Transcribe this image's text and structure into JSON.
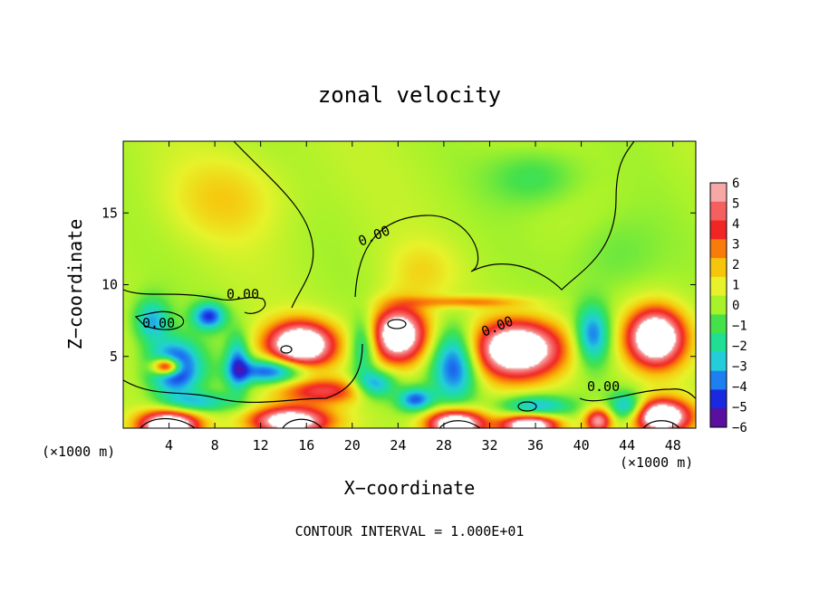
{
  "chart_data": {
    "type": "heatmap",
    "title": "zonal velocity",
    "xlabel": "X−coordinate",
    "ylabel": "Z−coordinate",
    "x_unit_left": "(×1000 m)",
    "x_unit_right": "(×1000 m)",
    "xlim": [
      0,
      50
    ],
    "ylim": [
      0,
      20
    ],
    "x_ticks": [
      "4",
      "8",
      "12",
      "16",
      "20",
      "24",
      "28",
      "32",
      "36",
      "40",
      "44",
      "48"
    ],
    "y_ticks": [
      "5",
      "10",
      "15"
    ],
    "contour_labels": [
      "0.00",
      "0.00",
      "0.00",
      "0.00",
      "0.00"
    ],
    "footer": "CONTOUR INTERVAL = 1.000E+01",
    "colorbar": {
      "labels": [
        "6",
        "5",
        "4",
        "3",
        "2",
        "1",
        "0",
        "−1",
        "−2",
        "−3",
        "−4",
        "−5",
        "−6"
      ],
      "colors": [
        "#f6a7a7",
        "#f55f5f",
        "#f22525",
        "#f97b0a",
        "#f7c60c",
        "#e7f22a",
        "#a8f22a",
        "#45e14b",
        "#1fdf95",
        "#23cdd9",
        "#1d7ff0",
        "#1a28df",
        "#5a0fa0"
      ]
    },
    "blobs": [
      {
        "x": 4.5,
        "z": 4.2,
        "u": -6.5,
        "sx": 2.2,
        "sz": 1.8
      },
      {
        "x": 3.8,
        "z": 4.3,
        "u": 9.0,
        "sx": 1.2,
        "sz": 0.6
      },
      {
        "x": 7.5,
        "z": 7.8,
        "u": -5.0,
        "sx": 1.4,
        "sz": 0.9
      },
      {
        "x": 2.5,
        "z": 7.5,
        "u": -3.5,
        "sx": 1.5,
        "sz": 1.5
      },
      {
        "x": 15.5,
        "z": 5.8,
        "u": 9.0,
        "sx": 3.0,
        "sz": 1.6
      },
      {
        "x": 13.0,
        "z": 4.0,
        "u": -5.5,
        "sx": 3.0,
        "sz": 0.9
      },
      {
        "x": 10.0,
        "z": 4.5,
        "u": -4.0,
        "sx": 1.0,
        "sz": 2.0
      },
      {
        "x": 17.5,
        "z": 2.6,
        "u": 4.0,
        "sx": 4.5,
        "sz": 0.9
      },
      {
        "x": 24.0,
        "z": 6.5,
        "u": 8.5,
        "sx": 2.5,
        "sz": 2.0
      },
      {
        "x": 21.0,
        "z": 5.8,
        "u": -3.5,
        "sx": 1.2,
        "sz": 2.0
      },
      {
        "x": 29.0,
        "z": 4.5,
        "u": -5.5,
        "sx": 2.0,
        "sz": 2.5
      },
      {
        "x": 34.5,
        "z": 5.5,
        "u": 9.0,
        "sx": 4.0,
        "sz": 2.0
      },
      {
        "x": 41.0,
        "z": 6.5,
        "u": -4.5,
        "sx": 1.5,
        "sz": 2.0
      },
      {
        "x": 46.5,
        "z": 6.3,
        "u": 9.0,
        "sx": 2.5,
        "sz": 2.0
      },
      {
        "x": 36.0,
        "z": 1.5,
        "u": -4.0,
        "sx": 3.0,
        "sz": 0.8
      },
      {
        "x": 4.0,
        "z": 0.2,
        "u": 9.0,
        "sx": 2.6,
        "sz": 1.0
      },
      {
        "x": 14.5,
        "z": 0.5,
        "u": 8.0,
        "sx": 3.5,
        "sz": 1.0
      },
      {
        "x": 25.5,
        "z": 2.0,
        "u": -4.5,
        "sx": 1.5,
        "sz": 0.8
      },
      {
        "x": 29.0,
        "z": 0.3,
        "u": 9.0,
        "sx": 2.5,
        "sz": 1.0
      },
      {
        "x": 35.5,
        "z": 0.2,
        "u": 8.0,
        "sx": 2.5,
        "sz": 0.8
      },
      {
        "x": 41.5,
        "z": 0.5,
        "u": 6.0,
        "sx": 1.2,
        "sz": 0.9
      },
      {
        "x": 47.0,
        "z": 0.8,
        "u": 9.0,
        "sx": 2.5,
        "sz": 1.2
      },
      {
        "x": 44.0,
        "z": 1.5,
        "u": -4.0,
        "sx": 1.5,
        "sz": 1.0
      },
      {
        "x": 6.5,
        "z": 1.8,
        "u": -3.0,
        "sx": 3.0,
        "sz": 0.7
      },
      {
        "x": 22.0,
        "z": 3.0,
        "u": -4.5,
        "sx": 1.8,
        "sz": 1.0
      },
      {
        "x": 30.0,
        "z": 8.8,
        "u": 2.5,
        "sx": 5.0,
        "sz": 0.4
      },
      {
        "x": 36.0,
        "z": 17.5,
        "u": -1.5,
        "sx": 4.0,
        "sz": 2.0
      },
      {
        "x": 43.0,
        "z": 12.0,
        "u": -1.0,
        "sx": 4.0,
        "sz": 3.0
      },
      {
        "x": 9.0,
        "z": 16.0,
        "u": 1.5,
        "sx": 5.0,
        "sz": 3.0
      },
      {
        "x": 26.0,
        "z": 11.0,
        "u": 1.2,
        "sx": 3.0,
        "sz": 2.0
      }
    ]
  }
}
